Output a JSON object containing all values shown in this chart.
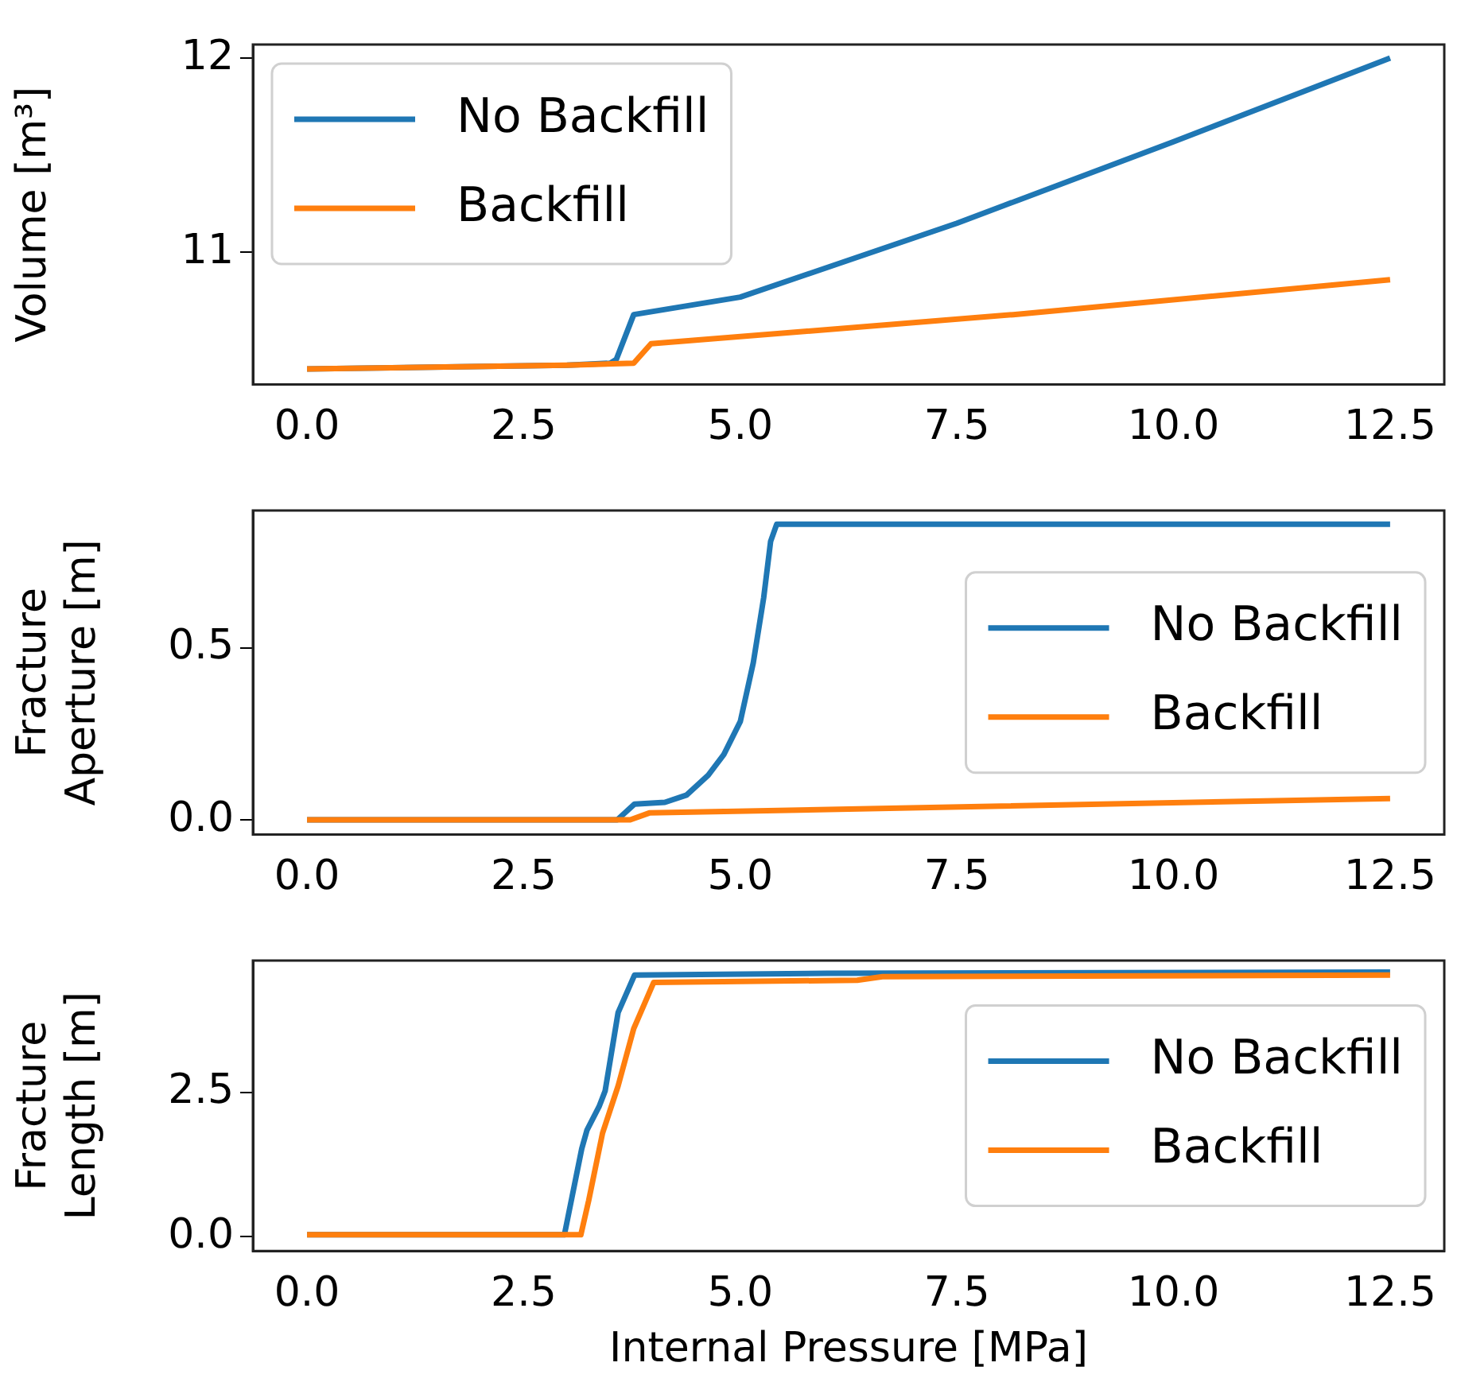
{
  "chart_data": [
    {
      "type": "line",
      "ylabel": "Volume [m³]",
      "xlim": [
        -0.625,
        13.125
      ],
      "xticks": [
        {
          "value": 0,
          "label": "0.0"
        },
        {
          "value": 2.5,
          "label": "2.5"
        },
        {
          "value": 5,
          "label": "5.0"
        },
        {
          "value": 7.5,
          "label": "7.5"
        },
        {
          "value": 10,
          "label": "10.0"
        },
        {
          "value": 12.5,
          "label": "12.5"
        }
      ],
      "ylim": [
        10.32,
        12.07
      ],
      "yticks": [
        11,
        12
      ],
      "legend": "upper left",
      "grid": false,
      "marker": "none",
      "line_style": "solid",
      "series": [
        {
          "name": "No Backfill",
          "color": "#1f77b4",
          "x": [
            0,
            3.0,
            3.5,
            3.57,
            3.77,
            5.0,
            7.5,
            10,
            12.5
          ],
          "values": [
            10.4,
            10.42,
            10.43,
            10.45,
            10.68,
            10.77,
            11.15,
            11.57,
            12.0
          ]
        },
        {
          "name": "Backfill",
          "color": "#ff7f0e",
          "x": [
            0,
            3.0,
            3.77,
            3.97,
            8.15,
            12.5
          ],
          "values": [
            10.4,
            10.42,
            10.43,
            10.53,
            10.68,
            10.86
          ]
        }
      ]
    },
    {
      "type": "line",
      "ylabel": "Fracture\nAperture [m]",
      "xlim": [
        -0.625,
        13.125
      ],
      "xticks": [
        {
          "value": 0,
          "label": "0.0"
        },
        {
          "value": 2.5,
          "label": "2.5"
        },
        {
          "value": 5,
          "label": "5.0"
        },
        {
          "value": 7.5,
          "label": "7.5"
        },
        {
          "value": 10,
          "label": "10.0"
        },
        {
          "value": 12.5,
          "label": "12.5"
        }
      ],
      "ylim": [
        -0.043,
        0.9
      ],
      "yticks": [
        {
          "value": 0,
          "label": "0.0"
        },
        {
          "value": 0.5,
          "label": "0.5"
        }
      ],
      "legend": "right",
      "grid": false,
      "marker": "none",
      "line_style": "solid",
      "series": [
        {
          "name": "No Backfill",
          "color": "#1f77b4",
          "x": [
            0,
            3.58,
            3.78,
            4.13,
            4.38,
            4.63,
            4.81,
            5.0,
            5.15,
            5.27,
            5.35,
            5.42,
            12.5
          ],
          "values": [
            0,
            0,
            0.046,
            0.051,
            0.072,
            0.13,
            0.19,
            0.286,
            0.457,
            0.646,
            0.81,
            0.86,
            0.86
          ]
        },
        {
          "name": "Backfill",
          "color": "#ff7f0e",
          "x": [
            0,
            3.73,
            3.95,
            12.5
          ],
          "values": [
            0,
            0,
            0.02,
            0.062
          ]
        }
      ]
    },
    {
      "type": "line",
      "xlabel": "Internal Pressure [MPa]",
      "ylabel": "Fracture\nLength [m]",
      "xlim": [
        -0.625,
        13.125
      ],
      "xticks": [
        {
          "value": 0,
          "label": "0.0"
        },
        {
          "value": 2.5,
          "label": "2.5"
        },
        {
          "value": 5,
          "label": "5.0"
        },
        {
          "value": 7.5,
          "label": "7.5"
        },
        {
          "value": 10,
          "label": "10.0"
        },
        {
          "value": 12.5,
          "label": "12.5"
        }
      ],
      "ylim": [
        -0.25,
        4.78
      ],
      "yticks": [
        {
          "value": 0,
          "label": "0.0"
        },
        {
          "value": 2.5,
          "label": "2.5"
        }
      ],
      "legend": "right",
      "grid": false,
      "marker": "none",
      "line_style": "solid",
      "series": [
        {
          "name": "No Backfill",
          "color": "#1f77b4",
          "x": [
            0,
            2.97,
            3.17,
            3.23,
            3.37,
            3.44,
            3.59,
            3.78,
            6.0,
            12.5
          ],
          "values": [
            0.03,
            0.03,
            1.52,
            1.84,
            2.25,
            2.52,
            3.88,
            4.53,
            4.56,
            4.58
          ]
        },
        {
          "name": "Backfill",
          "color": "#ff7f0e",
          "x": [
            0,
            3.16,
            3.25,
            3.41,
            3.59,
            3.77,
            4.0,
            6.35,
            6.64,
            12.5
          ],
          "values": [
            0.03,
            0.03,
            0.62,
            1.79,
            2.61,
            3.6,
            4.4,
            4.44,
            4.5,
            4.53
          ]
        }
      ]
    }
  ]
}
